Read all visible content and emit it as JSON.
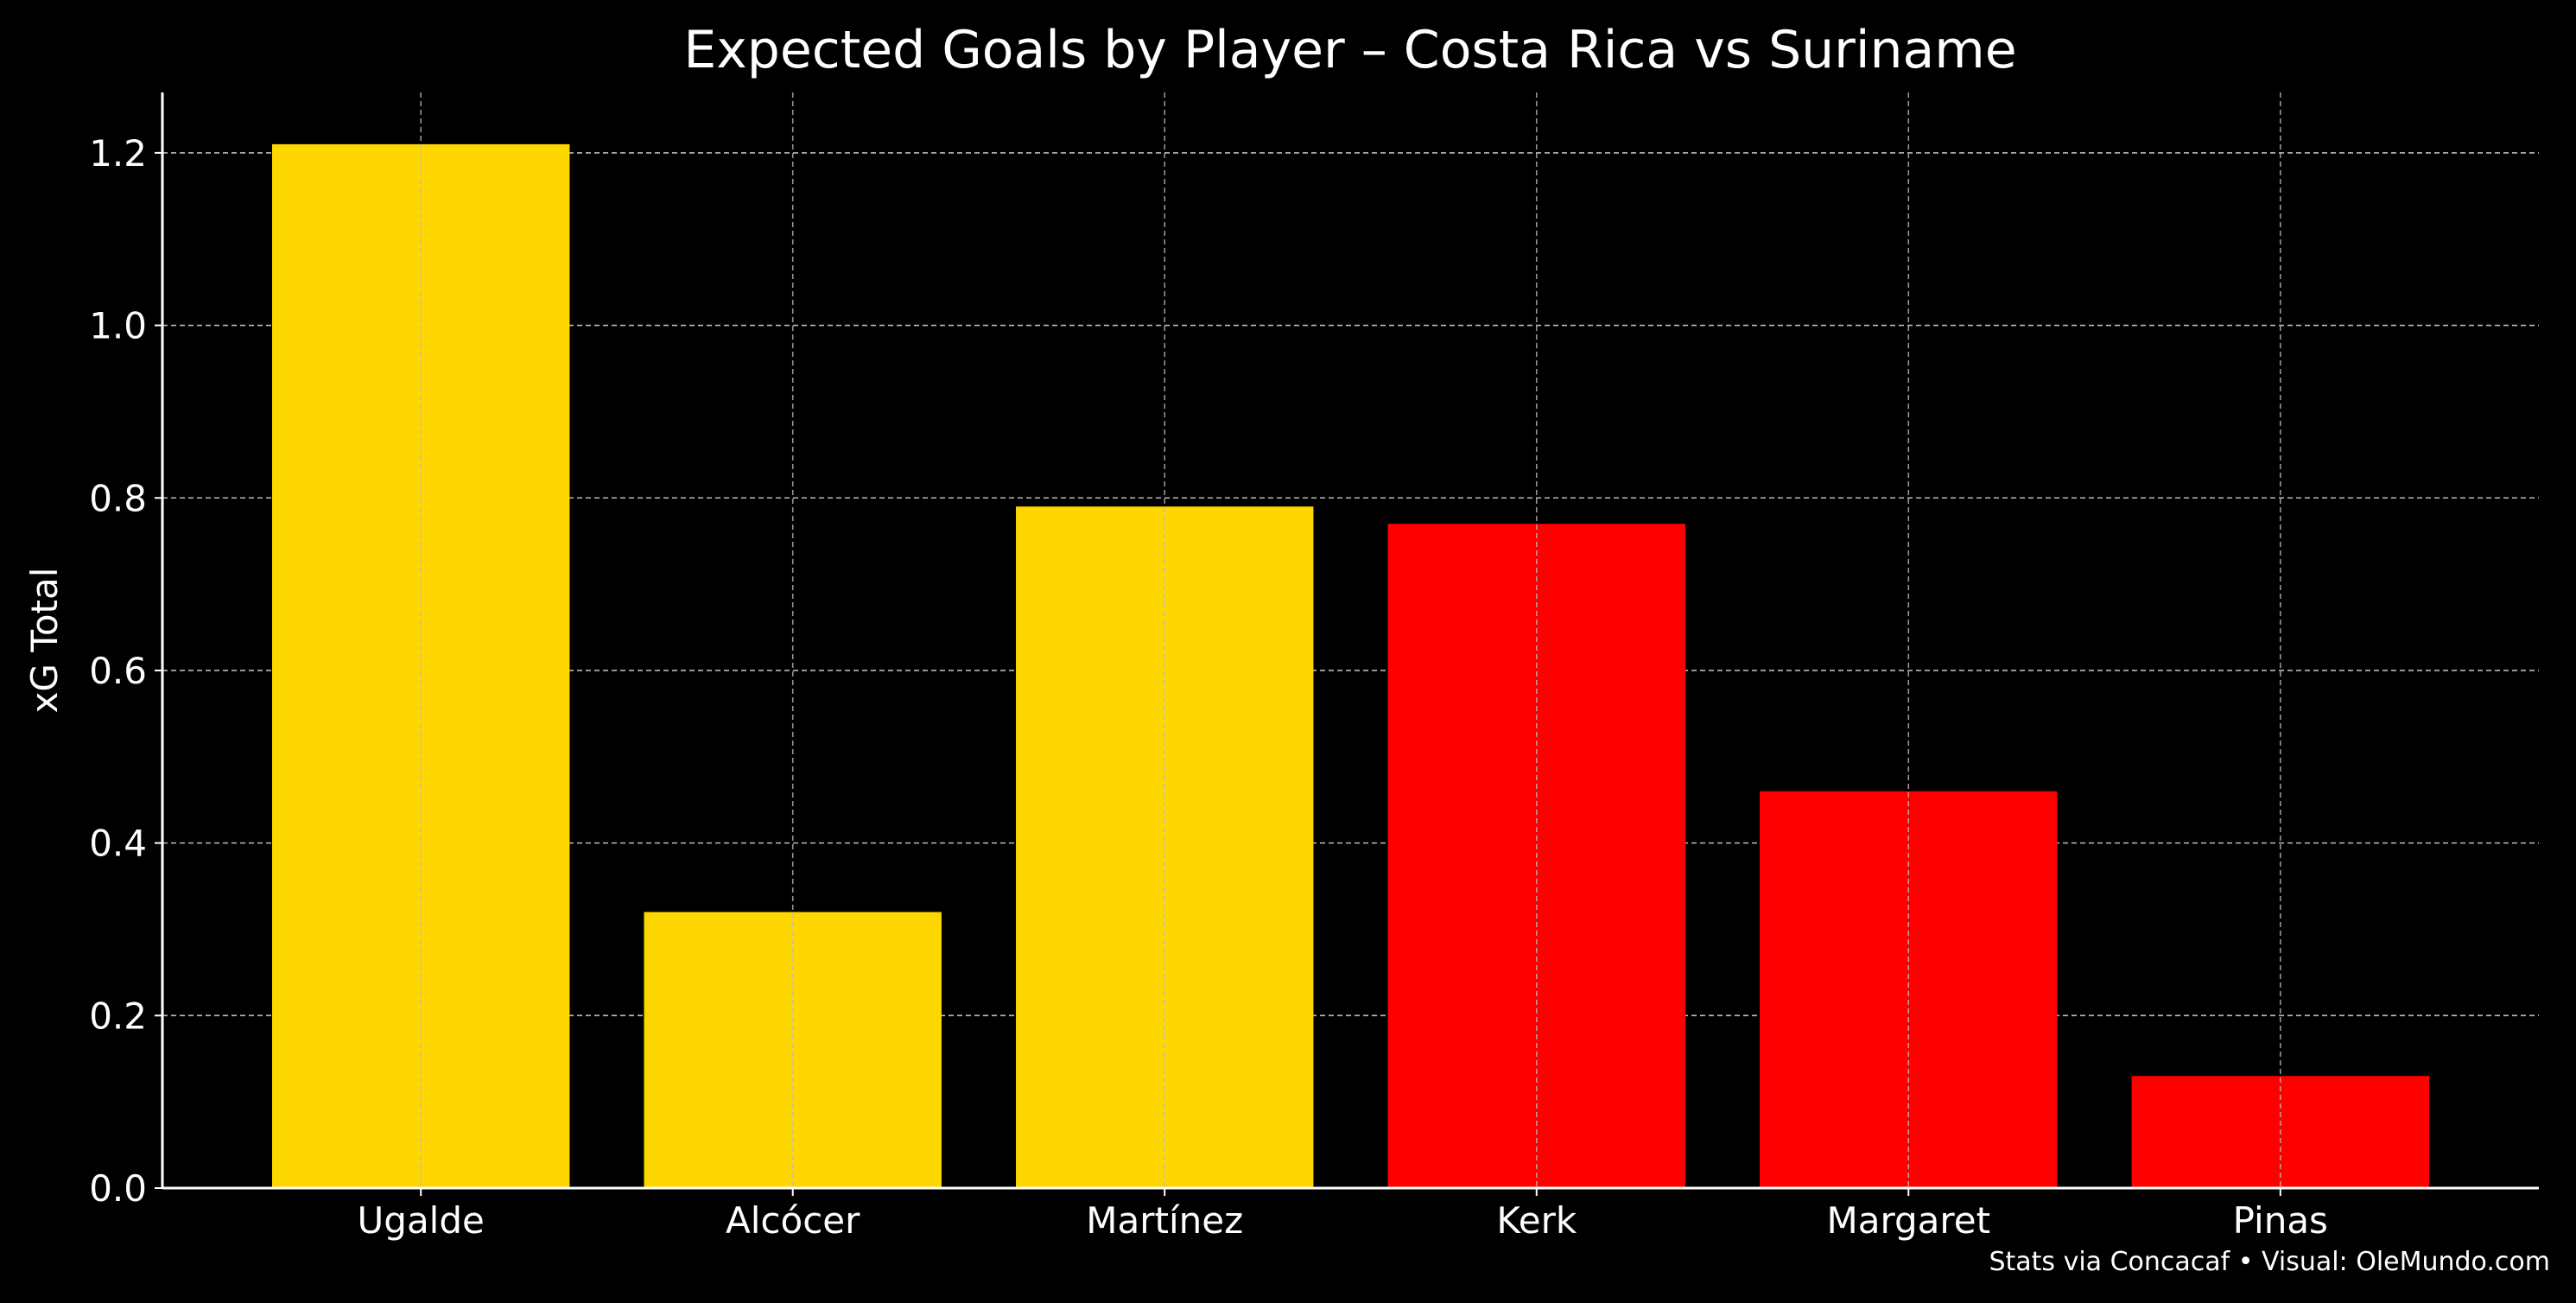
{
  "chart_data": {
    "type": "bar",
    "title": "Expected Goals by Player – Costa Rica vs Suriname",
    "xlabel": "",
    "ylabel": "xG Total",
    "categories": [
      "Ugalde",
      "Alcócer",
      "Martínez",
      "Kerk",
      "Margaret",
      "Pinas"
    ],
    "values": [
      1.21,
      0.32,
      0.79,
      0.77,
      0.46,
      0.13
    ],
    "bar_colors": [
      "#FFD700",
      "#FFD700",
      "#FFD700",
      "#FF0000",
      "#FF0000",
      "#FF0000"
    ],
    "ylim": [
      0,
      1.27
    ],
    "yticks": [
      0.0,
      0.2,
      0.4,
      0.6,
      0.8,
      1.0,
      1.2
    ],
    "ytick_labels": [
      "0.0",
      "0.2",
      "0.4",
      "0.6",
      "0.8",
      "1.0",
      "1.2"
    ],
    "grid": true,
    "background": "#000000",
    "text_color": "#FFFFFF",
    "footnote": "Stats via Concacaf • Visual: OleMundo.com"
  }
}
